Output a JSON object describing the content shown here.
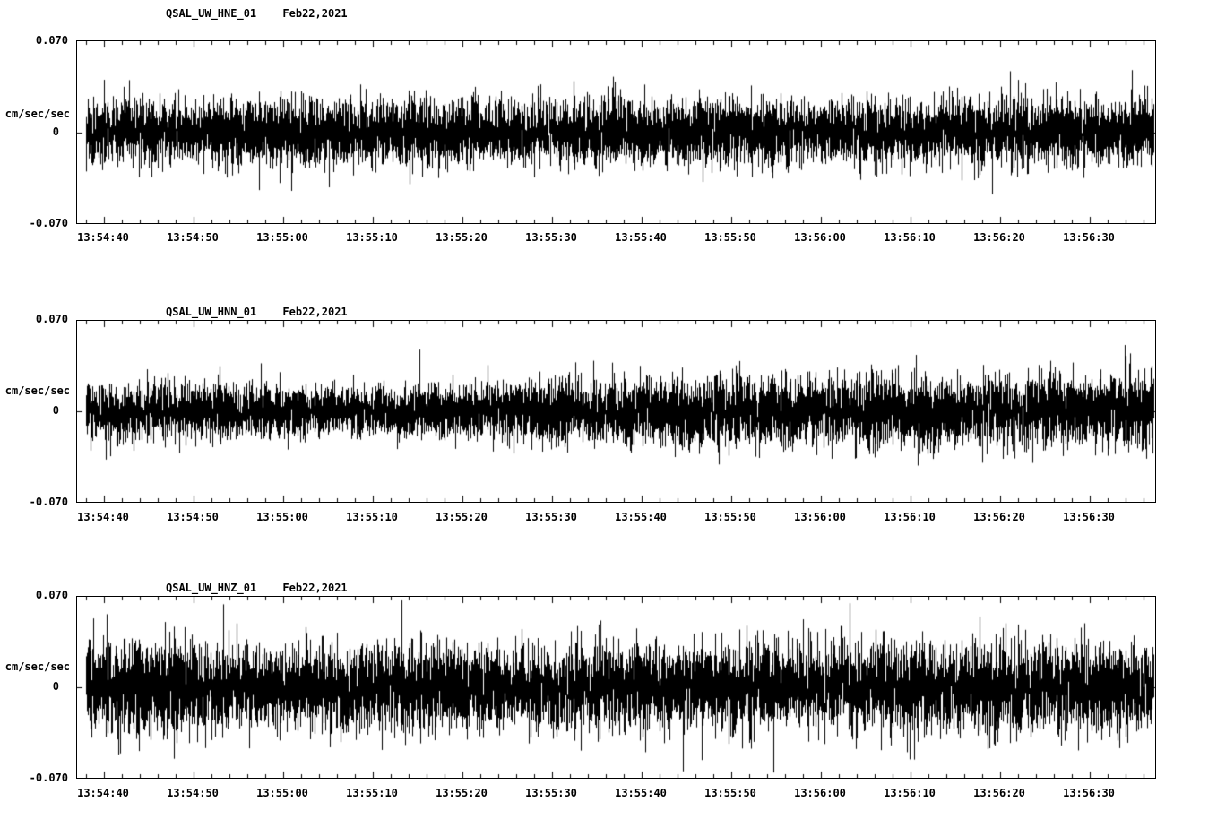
{
  "page": {
    "background": "#ffffff",
    "foreground": "#000000"
  },
  "chart_data": [
    {
      "type": "line",
      "subtype": "seismogram-waveform",
      "title": "QSAL_UW_HNE_01",
      "date_label": "Feb22,2021",
      "ylabel": "cm/sec/sec",
      "ylim": [
        -0.07,
        0.07
      ],
      "yticks": {
        "top": "0.070",
        "mid": "0",
        "bottom": "-0.070"
      },
      "xticks": [
        "13:54:40",
        "13:54:50",
        "13:55:00",
        "13:55:10",
        "13:55:20",
        "13:55:30",
        "13:55:40",
        "13:55:50",
        "13:56:00",
        "13:56:10",
        "13:56:20",
        "13:56:30"
      ],
      "x_range_estimate": [
        "13:54:36",
        "13:56:37"
      ],
      "x_major_interval_s": 10,
      "x_minor_interval_s": 2,
      "waveform": {
        "kind": "continuous-noise",
        "units": "cm/sec/sec",
        "seed": 101,
        "rms": 0.0125,
        "approx_peak": 0.055,
        "spike_rate": 0.005,
        "spike_amp": 0.02,
        "envelope": [
          1,
          1.05,
          0.95,
          1,
          1.1,
          1,
          0.95,
          1,
          1.05,
          0.95,
          1,
          1.05,
          1,
          0.95,
          1.05,
          1,
          1,
          1.05,
          0.95,
          1,
          1.05,
          1,
          0.95,
          1.05
        ]
      }
    },
    {
      "type": "line",
      "subtype": "seismogram-waveform",
      "title": "QSAL_UW_HNN_01",
      "date_label": "Feb22,2021",
      "ylabel": "cm/sec/sec",
      "ylim": [
        -0.07,
        0.07
      ],
      "yticks": {
        "top": "0.070",
        "mid": "0",
        "bottom": "-0.070"
      },
      "xticks": [
        "13:54:40",
        "13:54:50",
        "13:55:00",
        "13:55:10",
        "13:55:20",
        "13:55:30",
        "13:55:40",
        "13:55:50",
        "13:56:00",
        "13:56:10",
        "13:56:20",
        "13:56:30"
      ],
      "x_range_estimate": [
        "13:54:36",
        "13:56:37"
      ],
      "x_major_interval_s": 10,
      "x_minor_interval_s": 2,
      "waveform": {
        "kind": "continuous-noise",
        "units": "cm/sec/sec",
        "seed": 202,
        "rms": 0.012,
        "approx_peak": 0.055,
        "spike_rate": 0.004,
        "spike_amp": 0.018,
        "envelope": [
          0.85,
          0.9,
          0.95,
          0.9,
          0.85,
          0.8,
          0.85,
          0.8,
          0.85,
          0.95,
          1.05,
          1.1,
          1.05,
          1.1,
          1.15,
          1.1,
          1.15,
          1.2,
          1.15,
          1.1,
          1.15,
          1.2,
          1.15,
          1.2
        ]
      }
    },
    {
      "type": "line",
      "subtype": "seismogram-waveform",
      "title": "QSAL_UW_HNZ_01",
      "date_label": "Feb22,2021",
      "ylabel": "cm/sec/sec",
      "ylim": [
        -0.07,
        0.07
      ],
      "yticks": {
        "top": "0.070",
        "mid": "0",
        "bottom": "-0.070"
      },
      "xticks": [
        "13:54:40",
        "13:54:50",
        "13:55:00",
        "13:55:10",
        "13:55:20",
        "13:55:30",
        "13:55:40",
        "13:55:50",
        "13:56:00",
        "13:56:10",
        "13:56:20",
        "13:56:30"
      ],
      "x_range_estimate": [
        "13:54:36",
        "13:56:37"
      ],
      "x_major_interval_s": 10,
      "x_minor_interval_s": 2,
      "waveform": {
        "kind": "continuous-noise",
        "units": "cm/sec/sec",
        "seed": 303,
        "rms": 0.015,
        "approx_peak": 0.065,
        "spike_rate": 0.01,
        "spike_amp": 0.026,
        "envelope": [
          1.05,
          1.1,
          1.15,
          1.1,
          1.05,
          1.1,
          1.15,
          1.1,
          1.05,
          1.1,
          1.05,
          1.1,
          1.05,
          1.1,
          1.15,
          1.1,
          1.05,
          1.1,
          1.15,
          1.1,
          1.2,
          1.15,
          1.1,
          1.05
        ]
      }
    }
  ]
}
